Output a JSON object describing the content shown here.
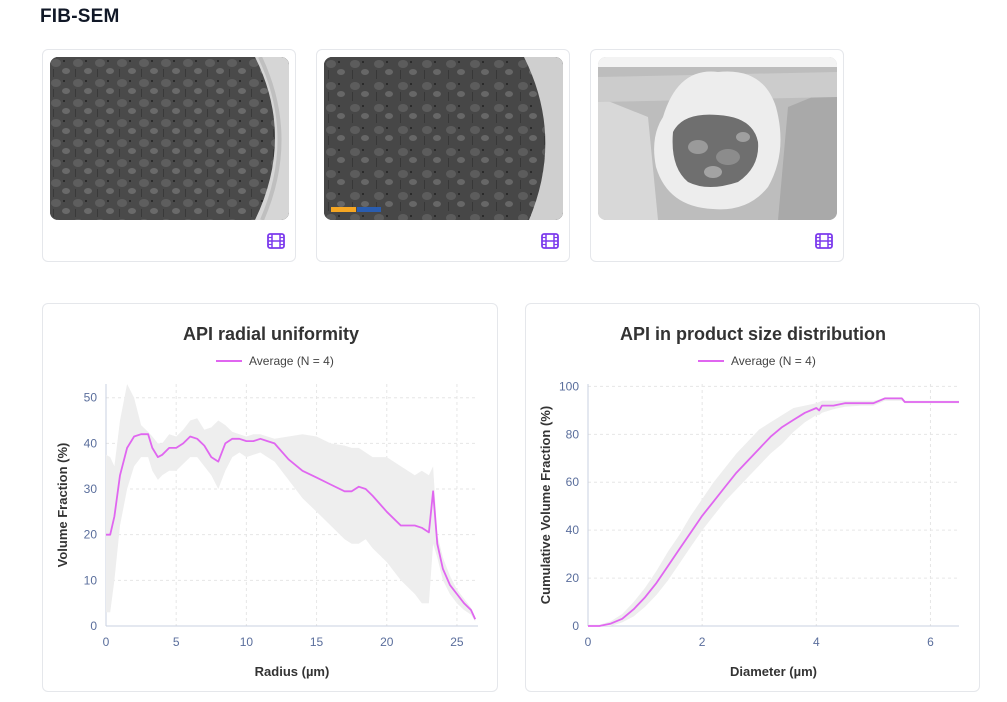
{
  "section": {
    "title": "FIB-SEM"
  },
  "media": [
    {
      "kind": "video",
      "icon": "film-icon",
      "overlay_text": ""
    },
    {
      "kind": "video",
      "icon": "film-icon",
      "overlay_text": ""
    },
    {
      "kind": "video",
      "icon": "film-icon",
      "overlay_text": ""
    }
  ],
  "colors": {
    "accent": "#7c3aed",
    "series": "#e066f0",
    "band": "#eeeeee",
    "tick": "#5a6e9c"
  },
  "chart_data": [
    {
      "type": "line",
      "title": "API radial uniformity",
      "xlabel": "Radius (µm)",
      "ylabel": "Volume Fraction (%)",
      "xlim": [
        0,
        26.5
      ],
      "ylim": [
        0,
        53
      ],
      "xticks": [
        0,
        5,
        10,
        15,
        20,
        25
      ],
      "yticks": [
        0,
        10,
        20,
        30,
        40,
        50
      ],
      "grid": true,
      "legend": "top-center",
      "series": [
        {
          "name": "Average (N = 4)",
          "x": [
            0,
            0.3,
            0.6,
            1,
            1.5,
            2,
            2.5,
            3,
            3.3,
            3.7,
            4,
            4.5,
            5,
            5.5,
            6,
            6.5,
            7,
            7.5,
            8,
            8.5,
            9,
            9.5,
            10,
            10.5,
            11,
            11.5,
            12,
            13,
            14,
            15,
            16,
            17,
            17.5,
            18,
            18.5,
            19,
            20,
            21,
            22,
            22.5,
            23,
            23.3,
            23.6,
            24,
            24.5,
            25,
            25.5,
            26,
            26.3
          ],
          "y": [
            20,
            20,
            24,
            33,
            39,
            41.5,
            42,
            42,
            39,
            37,
            37.5,
            39,
            39,
            40,
            41.5,
            41,
            39.5,
            37,
            36,
            40,
            41,
            41,
            40.5,
            40.5,
            41,
            40.5,
            40,
            36.5,
            34,
            32.5,
            31,
            29.5,
            29.5,
            30.5,
            30,
            28.5,
            25,
            22,
            22,
            21.5,
            20.5,
            29.5,
            18,
            12.5,
            9,
            7,
            5,
            3.5,
            1.5
          ],
          "band_upper": [
            37.5,
            37,
            35,
            45,
            53,
            50,
            44,
            42.5,
            41.5,
            40,
            40,
            42,
            41.5,
            43,
            45,
            45.5,
            43,
            43.5,
            45,
            44,
            42.5,
            42,
            41.5,
            42,
            42,
            41.5,
            41,
            41.5,
            42,
            41.5,
            40,
            39.5,
            39,
            39,
            38,
            37,
            37,
            35,
            33,
            34,
            33,
            35,
            20,
            15,
            11,
            8,
            6,
            4,
            2
          ],
          "band_lower": [
            3,
            3,
            10,
            22,
            30,
            35,
            37,
            37,
            34,
            32,
            33,
            34,
            34,
            35.5,
            37,
            37,
            35,
            33,
            30,
            34,
            37,
            38,
            37,
            37.5,
            38,
            37,
            36,
            32,
            28,
            25,
            22,
            19,
            18,
            18,
            19,
            17,
            14,
            10,
            7,
            5,
            5,
            18,
            15,
            10,
            7,
            5,
            3.5,
            2.5,
            1
          ]
        }
      ]
    },
    {
      "type": "line",
      "title": "API in product size distribution",
      "xlabel": "Diameter (µm)",
      "ylabel": "Cumulative Volume Fraction (%)",
      "xlim": [
        0,
        6.5
      ],
      "ylim": [
        0,
        101
      ],
      "xticks": [
        0,
        2,
        4,
        6
      ],
      "yticks": [
        0,
        20,
        40,
        60,
        80,
        100
      ],
      "grid": true,
      "legend": "top-center",
      "series": [
        {
          "name": "Average (N = 4)",
          "x": [
            0,
            0.2,
            0.4,
            0.6,
            0.8,
            1.0,
            1.2,
            1.4,
            1.6,
            1.8,
            2.0,
            2.2,
            2.4,
            2.6,
            2.8,
            3.0,
            3.2,
            3.4,
            3.6,
            3.8,
            4.0,
            4.05,
            4.1,
            4.3,
            4.5,
            4.8,
            5.0,
            5.1,
            5.2,
            5.5,
            5.55,
            6.0,
            6.5
          ],
          "y": [
            0,
            0,
            1,
            3,
            7,
            12,
            18,
            25,
            32,
            39,
            46,
            52,
            58,
            64,
            69,
            74,
            79,
            83,
            86,
            89,
            91,
            90,
            92,
            92,
            93,
            93,
            93,
            94,
            95,
            95,
            93.5,
            93.5,
            93.5
          ],
          "band_upper": [
            0.5,
            0.5,
            2,
            5,
            10,
            16,
            23,
            31,
            38,
            46,
            53,
            60,
            66,
            72,
            77,
            82,
            85,
            88,
            91,
            92,
            93,
            93.5,
            94,
            94,
            94,
            94,
            94,
            94.5,
            95.5,
            95.5,
            94,
            94,
            94
          ],
          "band_lower": [
            0,
            0,
            0,
            1.5,
            4,
            8,
            13,
            19,
            26,
            33,
            40,
            46,
            52,
            57,
            62,
            67,
            72,
            76,
            81,
            85,
            88,
            88,
            89,
            90.5,
            91.5,
            92,
            92,
            93,
            94,
            94,
            93,
            93,
            93
          ]
        }
      ]
    }
  ]
}
